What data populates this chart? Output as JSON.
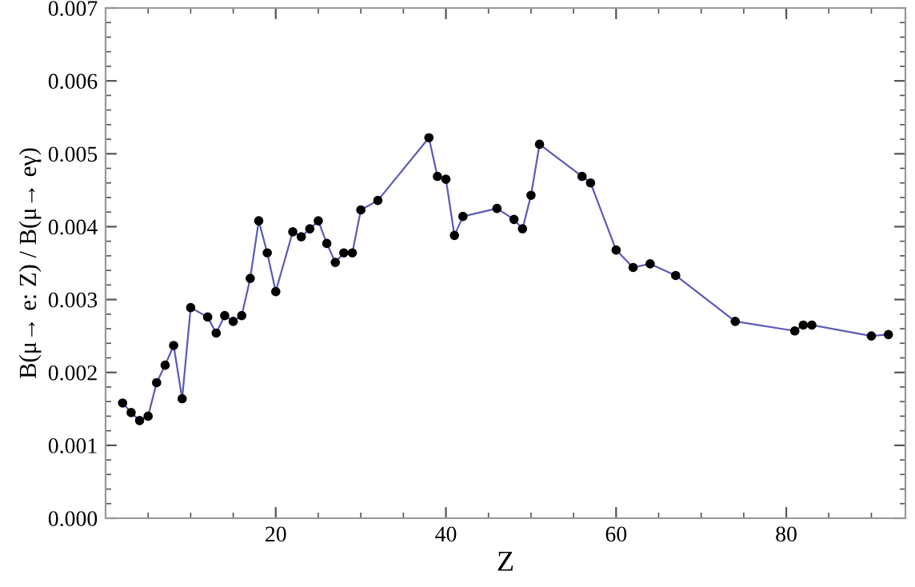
{
  "chart_data": {
    "type": "line",
    "xlabel": "Z",
    "ylabel": "B(μ→ e: Z) / B(μ→ eγ)",
    "x": [
      2,
      3,
      4,
      5,
      6,
      7,
      8,
      9,
      10,
      12,
      13,
      14,
      15,
      16,
      17,
      18,
      19,
      20,
      22,
      23,
      24,
      25,
      26,
      27,
      28,
      29,
      30,
      32,
      38,
      39,
      40,
      41,
      42,
      46,
      48,
      49,
      50,
      51,
      56,
      57,
      60,
      62,
      64,
      67,
      74,
      81,
      82,
      83,
      90,
      92
    ],
    "series": [
      {
        "color": "#5b5bb8",
        "values": [
          0.00158,
          0.00145,
          0.00134,
          0.0014,
          0.00186,
          0.0021,
          0.00237,
          0.00164,
          0.00289,
          0.00276,
          0.00254,
          0.00278,
          0.0027,
          0.00278,
          0.00329,
          0.00408,
          0.00364,
          0.00311,
          0.00393,
          0.00386,
          0.00397,
          0.00408,
          0.00377,
          0.00351,
          0.00364,
          0.00364,
          0.00423,
          0.00436,
          0.00522,
          0.00469,
          0.00465,
          0.00388,
          0.00414,
          0.00425,
          0.0041,
          0.00397,
          0.00443,
          0.00513,
          0.00469,
          0.0046,
          0.00368,
          0.00344,
          0.00349,
          0.00333,
          0.0027,
          0.00257,
          0.00265,
          0.00265,
          0.0025,
          0.00252
        ]
      }
    ],
    "xlim": [
      0,
      94
    ],
    "xticks": [
      20,
      40,
      60,
      80
    ],
    "ylim": [
      0,
      0.007
    ],
    "yticks": [
      {
        "value": 0,
        "label": "0.000"
      },
      {
        "value": 0.001,
        "label": "0.001"
      },
      {
        "value": 0.002,
        "label": "0.002"
      },
      {
        "value": 0.003,
        "label": "0.003"
      },
      {
        "value": 0.004,
        "label": "0.004"
      },
      {
        "value": 0.005,
        "label": "0.005"
      },
      {
        "value": 0.006,
        "label": "0.006"
      },
      {
        "value": 0.007,
        "label": "0.007"
      }
    ],
    "marker": "circle",
    "line_style": "solid",
    "grid": false,
    "legend": false
  }
}
